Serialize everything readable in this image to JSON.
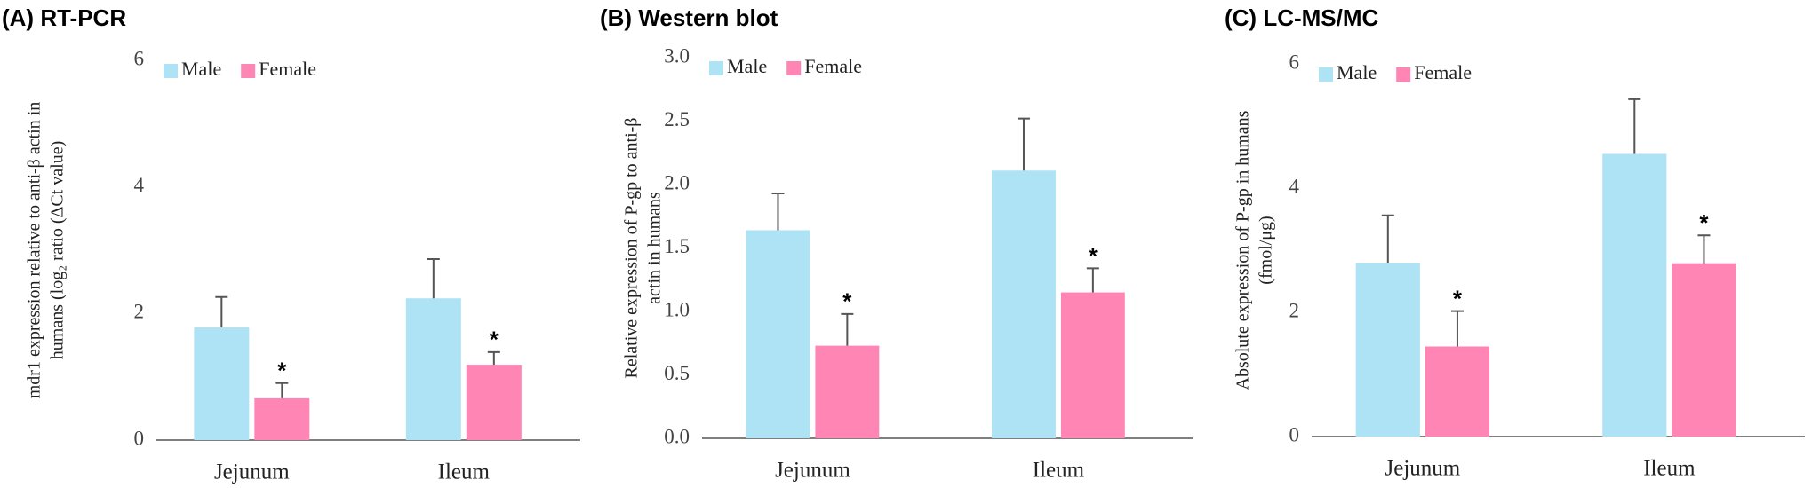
{
  "chart_data": [
    {
      "type": "bar",
      "title": "(A) RT-PCR",
      "ylabel": [
        "mdr1 expression relative to anti-β actin in",
        "humans (log₂ ratio (ΔCt value)"
      ],
      "categories": [
        "Jejunum",
        "Ileum"
      ],
      "series": [
        {
          "name": "Male",
          "color": "#aee3f5",
          "values": [
            1.78,
            2.24
          ],
          "errors": [
            0.48,
            0.62
          ]
        },
        {
          "name": "Female",
          "color": "#ff85b5",
          "values": [
            0.66,
            1.19
          ],
          "errors": [
            0.24,
            0.2
          ],
          "significance": [
            "*",
            "*"
          ]
        }
      ],
      "ylim": [
        0,
        6
      ],
      "yticks": [
        0,
        2,
        4,
        6
      ],
      "grid": false
    },
    {
      "type": "bar",
      "title": "(B) Western blot",
      "ylabel": [
        "Relative expression of P-gp to anti-β",
        "actin in humans"
      ],
      "categories": [
        "Jejunum",
        "Ileum"
      ],
      "series": [
        {
          "name": "Male",
          "color": "#aee3f5",
          "values": [
            1.64,
            2.11
          ],
          "errors": [
            0.29,
            0.41
          ]
        },
        {
          "name": "Female",
          "color": "#ff85b5",
          "values": [
            0.73,
            1.15
          ],
          "errors": [
            0.25,
            0.19
          ],
          "significance": [
            "*",
            "*"
          ]
        }
      ],
      "ylim": [
        0,
        3
      ],
      "yticks": [
        {
          "value": 0,
          "label": "0.0"
        },
        0.5,
        {
          "value": 1,
          "label": "1.0"
        },
        1.5,
        {
          "value": 2,
          "label": "2.0"
        },
        2.5,
        {
          "value": 3,
          "label": "3.0"
        }
      ],
      "grid": false
    },
    {
      "type": "bar",
      "title": "(C) LC-MS/MC",
      "ylabel": [
        "Absolute expression of P-gp in humans",
        "(fmol/μg)"
      ],
      "categories": [
        "Jejunum",
        "Ileum"
      ],
      "series": [
        {
          "name": "Male",
          "color": "#aee3f5",
          "values": [
            2.8,
            4.55
          ],
          "errors": [
            0.76,
            0.88
          ]
        },
        {
          "name": "Female",
          "color": "#ff85b5",
          "values": [
            1.45,
            2.79
          ],
          "errors": [
            0.57,
            0.45
          ],
          "significance": [
            "*",
            "*"
          ]
        }
      ],
      "ylim": [
        0,
        6
      ],
      "yticks": [
        0,
        2,
        4,
        6
      ],
      "grid": false
    }
  ]
}
